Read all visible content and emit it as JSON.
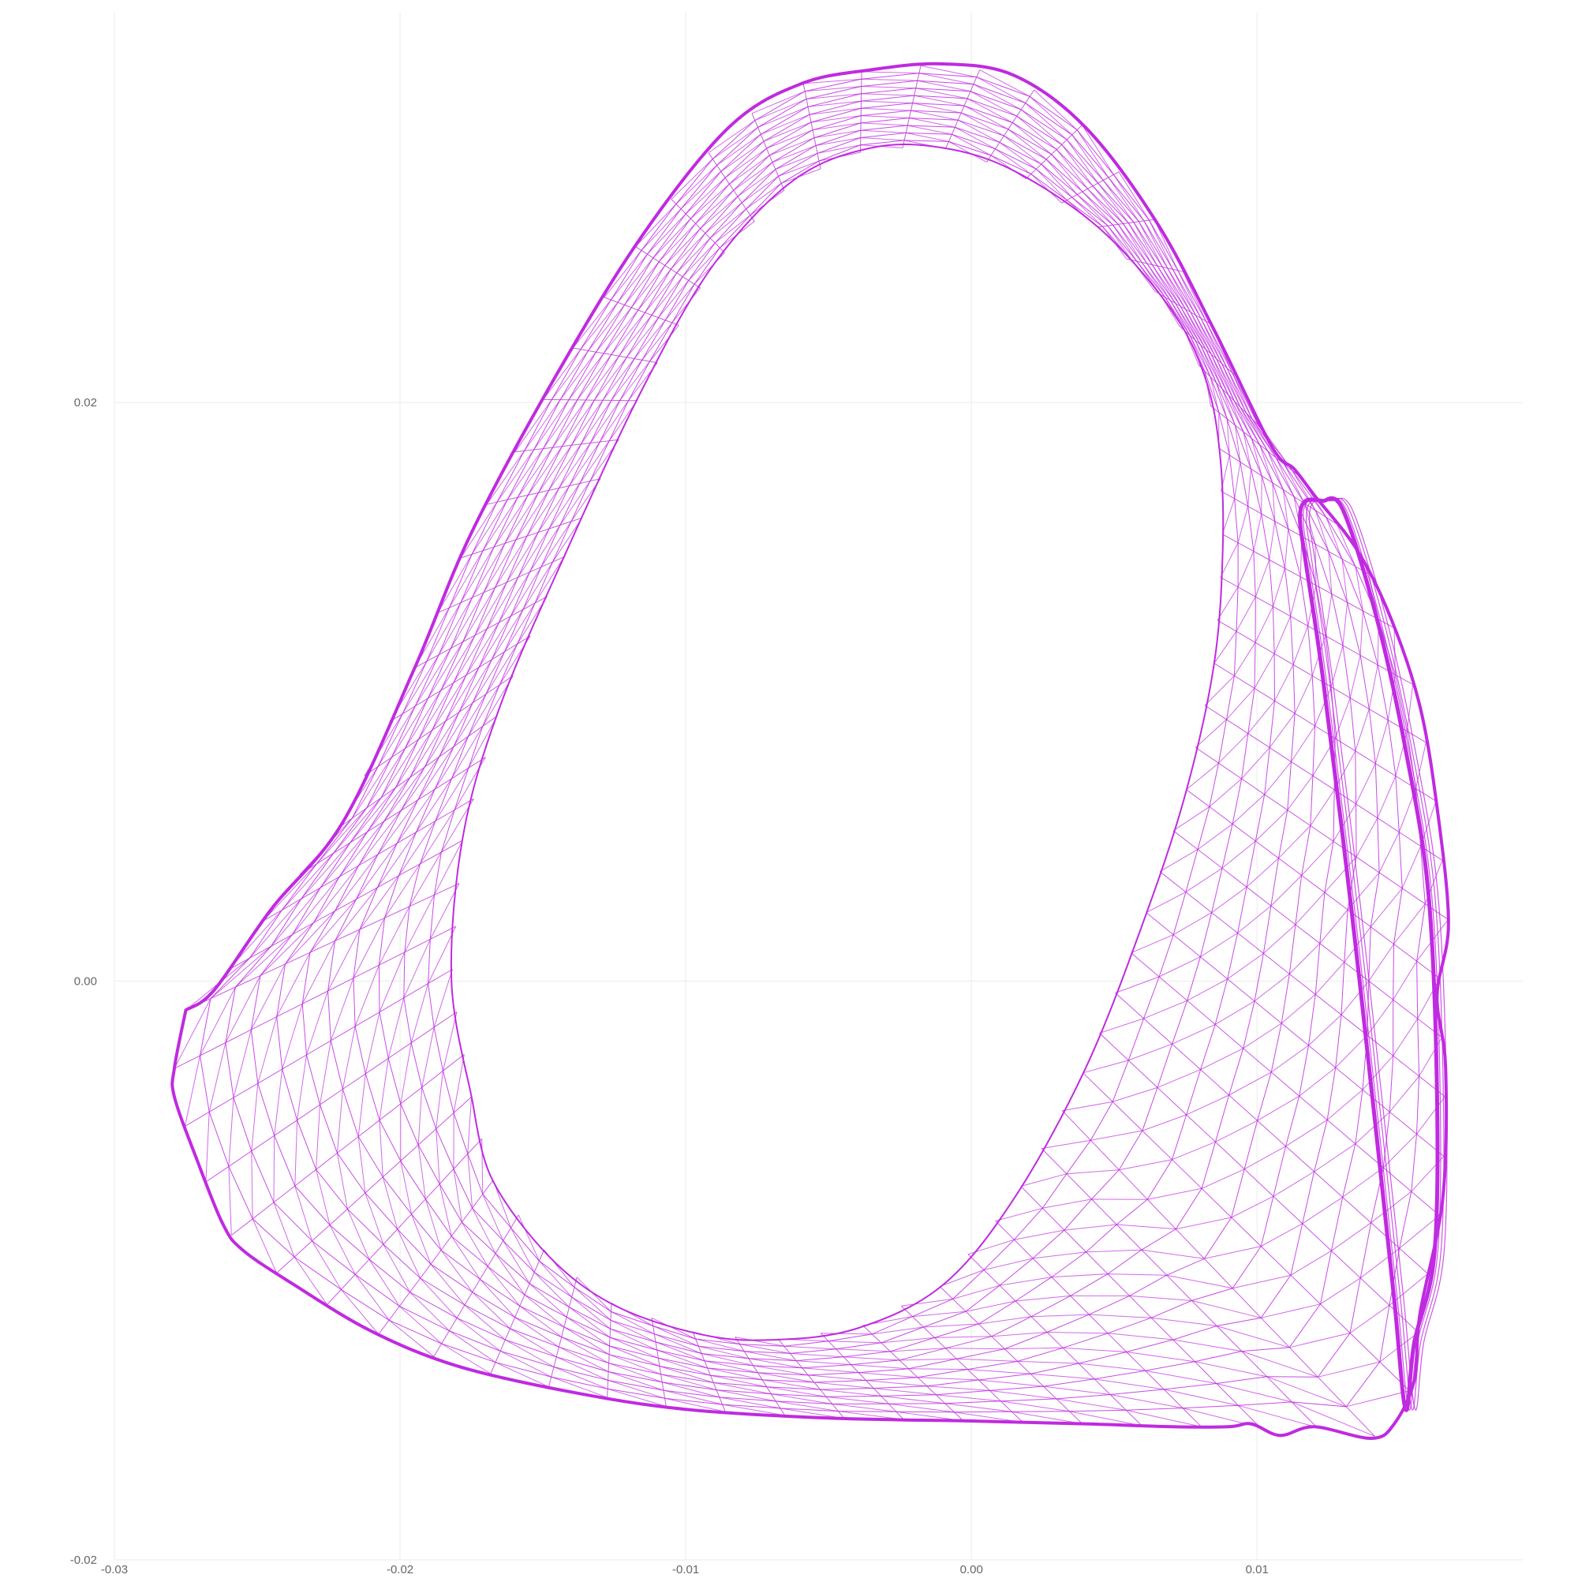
{
  "chart_data": {
    "type": "line",
    "title": "",
    "xlabel": "",
    "ylabel": "",
    "xlim": [
      -0.03,
      0.0193
    ],
    "ylim": [
      -0.02,
      0.0335
    ],
    "grid": true,
    "legend": "none",
    "x_ticks": [
      "-0.03",
      "-0.02",
      "-0.01",
      "0.00",
      "0.01"
    ],
    "x_tick_values": [
      -0.03,
      -0.02,
      -0.01,
      0.0,
      0.01
    ],
    "y_ticks": [
      "-0.02",
      "0.00",
      "0.02"
    ],
    "y_tick_values": [
      -0.02,
      0.0,
      0.02
    ],
    "line_color": "#c02ae0",
    "series": [
      {
        "role": "outer-boundary",
        "x": [
          -0.0275,
          -0.0265,
          -0.0245,
          -0.022,
          -0.0195,
          -0.0175,
          -0.0145,
          -0.0115,
          -0.0085,
          -0.006,
          -0.0035,
          -0.001,
          0.0015,
          0.004,
          0.0065,
          0.0085,
          0.0105,
          0.0113,
          0.012,
          0.0135,
          0.0147,
          0.0157,
          0.0163,
          0.0167,
          0.0163,
          0.0166,
          0.0165,
          0.0157,
          0.0155,
          0.0148,
          0.014,
          0.012,
          0.0108,
          0.0098,
          0.009,
          0.007,
          0.004,
          0.0,
          -0.005,
          -0.01,
          -0.014,
          -0.018,
          -0.021,
          -0.0237,
          -0.0255,
          -0.0262,
          -0.0271,
          -0.0279,
          -0.0279,
          -0.0275
        ],
        "y": [
          -0.001,
          -0.0003,
          0.0025,
          0.0055,
          0.0108,
          0.0155,
          0.021,
          0.0258,
          0.0295,
          0.031,
          0.0315,
          0.0317,
          0.0313,
          0.0295,
          0.0262,
          0.0225,
          0.0185,
          0.0177,
          0.0168,
          0.0149,
          0.0125,
          0.0095,
          0.006,
          0.002,
          -0.0005,
          -0.003,
          -0.0075,
          -0.0115,
          -0.0138,
          -0.0153,
          -0.0158,
          -0.0154,
          -0.0157,
          -0.0153,
          -0.0154,
          -0.0154,
          -0.0153,
          -0.0152,
          -0.0151,
          -0.0148,
          -0.0142,
          -0.0133,
          -0.0121,
          -0.0105,
          -0.0093,
          -0.0084,
          -0.0062,
          -0.004,
          -0.003,
          -0.001
        ]
      },
      {
        "role": "inner-boundary",
        "x": [
          -0.0175,
          -0.0182,
          -0.0178,
          -0.0165,
          -0.0142,
          -0.0115,
          -0.009,
          -0.0062,
          -0.0035,
          -0.001,
          0.0015,
          0.0045,
          0.007,
          0.0082,
          0.0087,
          0.0088,
          0.0085,
          0.0075,
          0.006,
          0.004,
          0.0015,
          -0.001,
          -0.004,
          -0.007,
          -0.0095,
          -0.0125,
          -0.0148,
          -0.0168,
          -0.0175
        ],
        "y": [
          -0.004,
          0.0,
          0.005,
          0.0095,
          0.0148,
          0.0205,
          0.0248,
          0.0277,
          0.0288,
          0.0288,
          0.028,
          0.026,
          0.0232,
          0.0208,
          0.0182,
          0.015,
          0.011,
          0.0065,
          0.002,
          -0.003,
          -0.0075,
          -0.0105,
          -0.012,
          -0.0124,
          -0.0122,
          -0.0112,
          -0.0095,
          -0.0068,
          -0.004
        ]
      },
      {
        "role": "side-loop",
        "x": [
          0.0123,
          0.013,
          0.0142,
          0.0152,
          0.016,
          0.0163,
          0.0162,
          0.0155,
          0.0152,
          0.0148,
          0.0142,
          0.0133,
          0.0123,
          0.0117,
          0.0115,
          0.0117,
          0.0123
        ],
        "y": [
          0.0166,
          0.0163,
          0.0125,
          0.008,
          0.003,
          -0.004,
          -0.0095,
          -0.0125,
          -0.0148,
          -0.011,
          -0.0055,
          0.0025,
          0.0105,
          0.0145,
          0.016,
          0.0166,
          0.0166
        ]
      }
    ],
    "mesh": {
      "description_band": "triangulated wireframe surface filling the band between the outer and inner boundaries",
      "rings": 11,
      "spokes": 72
    }
  }
}
